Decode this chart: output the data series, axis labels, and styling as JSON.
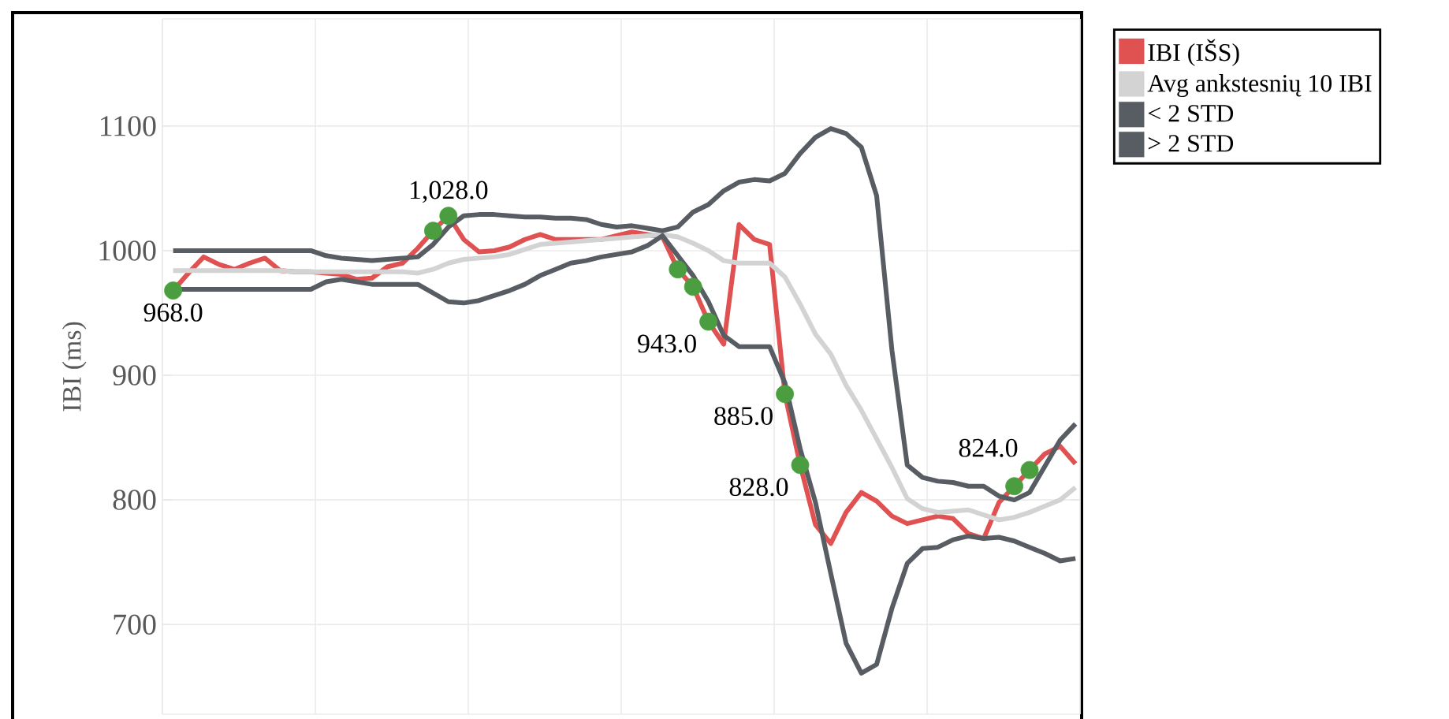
{
  "chart_data": {
    "type": "line",
    "ylabel": "IBI (ms)",
    "categories": [
      null,
      null,
      null,
      null,
      null,
      null,
      null,
      null,
      null,
      null,
      null,
      null,
      null,
      null,
      null,
      null,
      null,
      null,
      null,
      null,
      null,
      null,
      null,
      null,
      null,
      null,
      null,
      null,
      null,
      null,
      null,
      null,
      null,
      null,
      null,
      null,
      null,
      null,
      null,
      null,
      null,
      null,
      null,
      null,
      null,
      null,
      null,
      null,
      null,
      null,
      null,
      null,
      null,
      null,
      null,
      null,
      null,
      null,
      null,
      null
    ],
    "ylim": [
      628,
      1186
    ],
    "yticks": [
      700,
      800,
      900,
      1000,
      1100
    ],
    "tick_labels": "y",
    "grid": true,
    "legend": "top right",
    "line_style": "solid",
    "series": [
      {
        "name": "IBI (IŠS)",
        "color": "#e05252",
        "values": [
          968,
          982,
          995,
          989,
          985,
          990,
          994,
          984,
          983,
          983,
          982,
          981,
          977,
          978,
          987,
          990,
          1002,
          1016,
          1028,
          1009,
          999,
          1000,
          1003,
          1009,
          1013,
          1009,
          1009,
          1009,
          1009,
          1012,
          1015,
          1013,
          1011,
          985,
          971,
          943,
          925,
          1021,
          1009,
          1005,
          885,
          828,
          780,
          765,
          790,
          806,
          799,
          787,
          781,
          784,
          787,
          785,
          773,
          769,
          798,
          811,
          824,
          837,
          843,
          829
        ]
      },
      {
        "name": "Avg ankstesnių 10 IBI",
        "color": "#d3d3d3",
        "values": [
          984,
          984,
          984,
          984,
          984,
          984,
          984,
          984,
          983,
          983,
          983,
          983,
          983,
          983,
          983,
          983,
          982,
          985,
          990,
          993,
          994,
          995,
          997,
          1001,
          1005,
          1006,
          1007,
          1008,
          1009,
          1010,
          1011,
          1012,
          1013,
          1011,
          1006,
          1000,
          992,
          990,
          990,
          990,
          979,
          957,
          933,
          917,
          892,
          872,
          849,
          826,
          801,
          793,
          790,
          791,
          792,
          788,
          784,
          786,
          790,
          795,
          800,
          810
        ]
      },
      {
        "name": "< 2 STD",
        "color": "#585d63",
        "values": [
          969,
          969,
          969,
          969,
          969,
          969,
          969,
          969,
          969,
          969,
          975,
          977,
          975,
          973,
          973,
          973,
          973,
          966,
          959,
          958,
          960,
          964,
          968,
          973,
          980,
          985,
          990,
          992,
          995,
          997,
          999,
          1004,
          1012,
          996,
          980,
          959,
          932,
          923,
          923,
          923,
          894,
          841,
          798,
          741,
          685,
          661,
          668,
          713,
          749,
          761,
          762,
          768,
          771,
          769,
          770,
          767,
          762,
          757,
          751,
          753
        ]
      },
      {
        "name": "> 2 STD",
        "color": "#585d63",
        "values": [
          1000,
          1000,
          1000,
          1000,
          1000,
          1000,
          1000,
          1000,
          1000,
          1000,
          996,
          994,
          993,
          992,
          993,
          994,
          995,
          1005,
          1019,
          1028,
          1029,
          1029,
          1028,
          1027,
          1027,
          1026,
          1026,
          1025,
          1021,
          1019,
          1020,
          1018,
          1016,
          1019,
          1031,
          1037,
          1048,
          1055,
          1057,
          1056,
          1062,
          1078,
          1091,
          1098,
          1094,
          1083,
          1044,
          920,
          828,
          818,
          815,
          814,
          811,
          811,
          803,
          800,
          806,
          827,
          848,
          861
        ]
      },
      {
        "type": "scatter",
        "color": "#4a9e3f",
        "values": [
          968,
          null,
          null,
          null,
          null,
          null,
          null,
          null,
          null,
          null,
          null,
          null,
          null,
          null,
          null,
          null,
          null,
          1016,
          1028,
          null,
          null,
          null,
          null,
          null,
          null,
          null,
          null,
          null,
          null,
          null,
          null,
          null,
          null,
          985,
          971,
          943,
          null,
          null,
          null,
          null,
          885,
          828,
          null,
          null,
          null,
          null,
          null,
          null,
          null,
          null,
          null,
          null,
          null,
          null,
          null,
          811,
          824,
          null,
          null,
          null
        ],
        "value_labels": [
          "968.0",
          null,
          null,
          null,
          null,
          null,
          null,
          null,
          null,
          null,
          null,
          null,
          null,
          null,
          null,
          null,
          null,
          null,
          "1,028.0",
          null,
          null,
          null,
          null,
          null,
          null,
          null,
          null,
          null,
          null,
          null,
          null,
          null,
          null,
          null,
          null,
          "943.0",
          null,
          null,
          null,
          null,
          "885.0",
          "828.0",
          null,
          null,
          null,
          null,
          null,
          null,
          null,
          null,
          null,
          null,
          null,
          null,
          null,
          null,
          "824.0",
          null,
          null,
          null
        ]
      }
    ]
  }
}
